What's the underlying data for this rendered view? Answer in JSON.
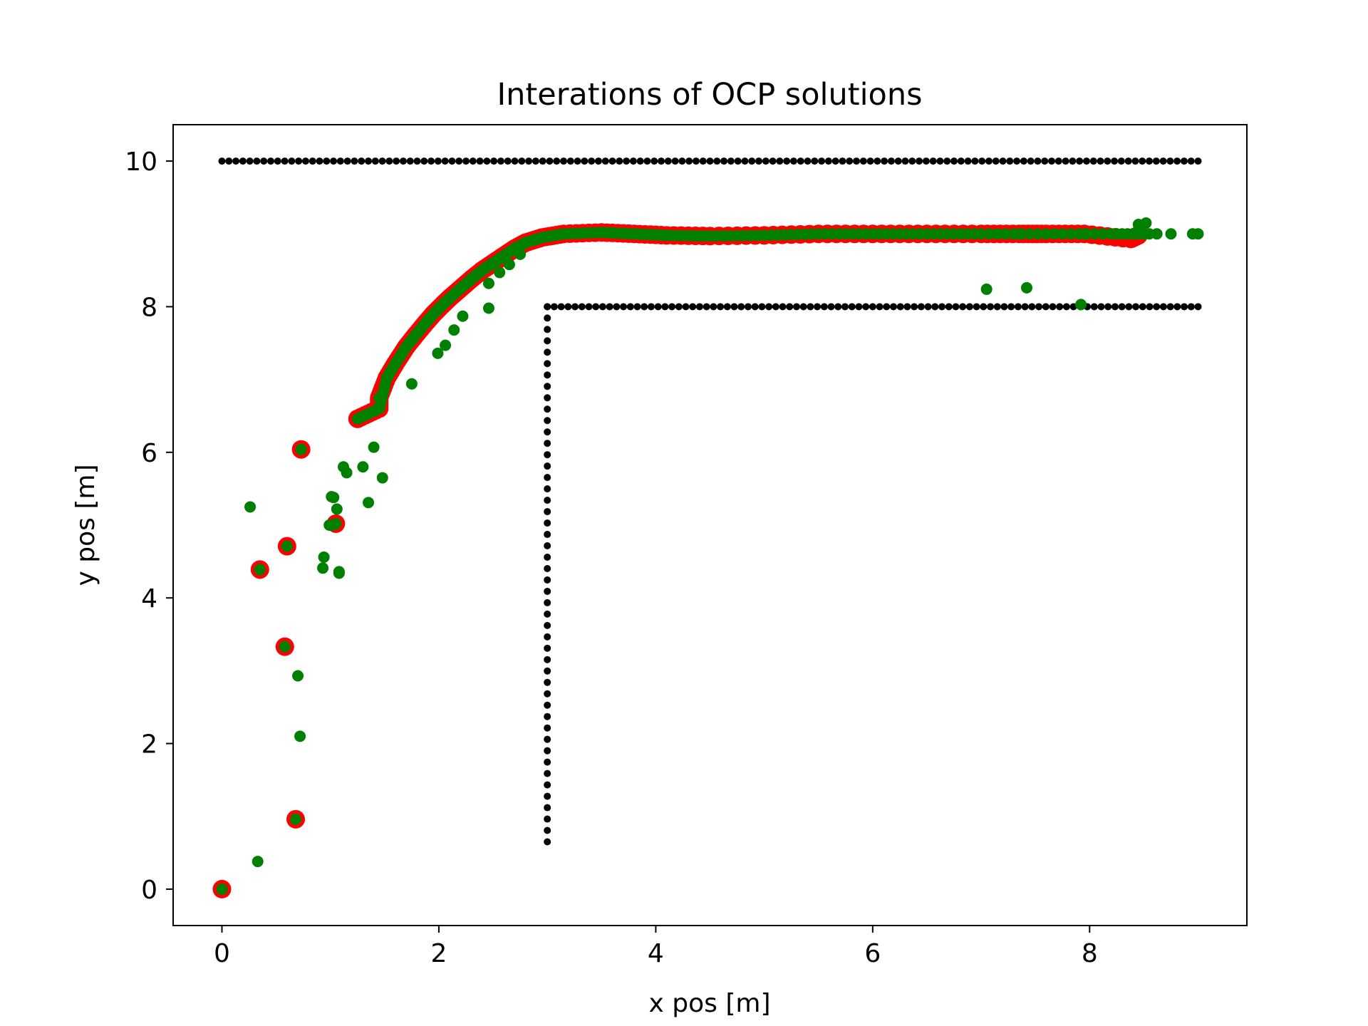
{
  "chart_data": {
    "type": "scatter",
    "title": "Interations of OCP solutions",
    "xlabel": "x pos [m]",
    "ylabel": "y pos [m]",
    "xlim": [
      -0.45,
      9.45
    ],
    "ylim": [
      -0.5,
      10.5
    ],
    "xticks": [
      0,
      2,
      4,
      6,
      8
    ],
    "yticks": [
      0,
      2,
      4,
      6,
      8,
      10
    ],
    "grid": false,
    "legend": "none",
    "series": [
      {
        "kind": "obstacle-top-wall",
        "color": "#000000",
        "x_range": [
          0,
          9
        ],
        "y": 10,
        "count": 141
      },
      {
        "kind": "obstacle-lower-wall",
        "color": "#000000",
        "x_range": [
          3,
          9
        ],
        "y": 8,
        "count": 95
      },
      {
        "kind": "obstacle-vertical-wall",
        "color": "#000000",
        "x": 3,
        "y_range": [
          0.65,
          8
        ],
        "count": 48
      },
      {
        "kind": "iterates-red",
        "color": "#ff0000",
        "points": [
          [
            0,
            0
          ],
          [
            0.68,
            0.96
          ],
          [
            0.58,
            3.33
          ],
          [
            0.35,
            4.39
          ],
          [
            0.6,
            4.71
          ],
          [
            1.05,
            5.02
          ],
          [
            0.73,
            6.04
          ],
          [
            1.25,
            6.46
          ],
          [
            1.45,
            6.6
          ],
          [
            1.45,
            6.75
          ],
          [
            1.52,
            7.02
          ],
          [
            1.6,
            7.22
          ],
          [
            1.7,
            7.45
          ],
          [
            1.78,
            7.6
          ],
          [
            1.88,
            7.78
          ],
          [
            1.95,
            7.9
          ],
          [
            2.03,
            8.02
          ],
          [
            2.1,
            8.12
          ],
          [
            2.2,
            8.25
          ],
          [
            2.3,
            8.38
          ],
          [
            2.4,
            8.5
          ],
          [
            2.5,
            8.6
          ],
          [
            2.6,
            8.7
          ],
          [
            2.7,
            8.8
          ],
          [
            2.8,
            8.88
          ],
          [
            2.95,
            8.95
          ],
          [
            3.15,
            9.0
          ],
          [
            3.5,
            9.02
          ],
          [
            3.8,
            9.0
          ],
          [
            4.1,
            8.98
          ],
          [
            4.5,
            8.97
          ],
          [
            5.0,
            8.98
          ],
          [
            5.5,
            9.0
          ],
          [
            6.0,
            9.0
          ],
          [
            6.5,
            9.0
          ],
          [
            7.0,
            9.0
          ],
          [
            7.35,
            9.0
          ],
          [
            7.6,
            9.0
          ],
          [
            7.95,
            9.0
          ],
          [
            8.38,
            8.93
          ],
          [
            8.45,
            8.98
          ]
        ]
      },
      {
        "kind": "iterates-green",
        "color": "#008000",
        "points": [
          [
            0,
            0
          ],
          [
            0.33,
            0.38
          ],
          [
            0.72,
            2.1
          ],
          [
            0.7,
            2.93
          ],
          [
            0.58,
            3.33
          ],
          [
            0.35,
            4.39
          ],
          [
            0.6,
            4.71
          ],
          [
            0.68,
            0.96
          ],
          [
            0.26,
            5.25
          ],
          [
            0.93,
            4.41
          ],
          [
            0.94,
            4.56
          ],
          [
            1.08,
            4.34
          ],
          [
            1.08,
            4.36
          ],
          [
            0.99,
            5.0
          ],
          [
            1.02,
            5.0
          ],
          [
            1.06,
            5.22
          ],
          [
            1.01,
            5.39
          ],
          [
            1.03,
            5.38
          ],
          [
            1.12,
            5.8
          ],
          [
            1.15,
            5.72
          ],
          [
            1.3,
            5.8
          ],
          [
            1.35,
            5.31
          ],
          [
            1.4,
            6.07
          ],
          [
            1.48,
            5.65
          ],
          [
            1.75,
            6.94
          ],
          [
            1.99,
            7.36
          ],
          [
            2.06,
            7.47
          ],
          [
            2.14,
            7.68
          ],
          [
            2.22,
            7.87
          ],
          [
            2.46,
            7.98
          ],
          [
            2.46,
            8.32
          ],
          [
            2.56,
            8.47
          ],
          [
            2.65,
            8.58
          ],
          [
            2.75,
            8.72
          ],
          [
            0.73,
            6.04
          ],
          [
            1.05,
            5.02
          ],
          [
            1.25,
            6.46
          ],
          [
            1.45,
            6.6
          ],
          [
            1.45,
            6.75
          ],
          [
            1.52,
            7.02
          ],
          [
            1.6,
            7.22
          ],
          [
            1.7,
            7.45
          ],
          [
            1.78,
            7.6
          ],
          [
            1.88,
            7.78
          ],
          [
            1.95,
            7.9
          ],
          [
            2.03,
            8.02
          ],
          [
            2.1,
            8.12
          ],
          [
            2.2,
            8.25
          ],
          [
            2.3,
            8.38
          ],
          [
            2.4,
            8.5
          ],
          [
            2.5,
            8.6
          ],
          [
            2.6,
            8.7
          ],
          [
            2.7,
            8.8
          ],
          [
            2.8,
            8.88
          ],
          [
            2.95,
            8.95
          ],
          [
            3.15,
            9.0
          ],
          [
            3.5,
            9.02
          ],
          [
            3.8,
            9.0
          ],
          [
            4.1,
            8.98
          ],
          [
            4.5,
            8.97
          ],
          [
            5.0,
            8.98
          ],
          [
            5.5,
            9.0
          ],
          [
            6.0,
            9.0
          ],
          [
            6.5,
            9.0
          ],
          [
            7.0,
            9.0
          ],
          [
            7.35,
            9.0
          ],
          [
            7.6,
            9.0
          ],
          [
            7.95,
            9.0
          ],
          [
            8.2,
            9.0
          ],
          [
            8.4,
            9.0
          ],
          [
            8.45,
            9.13
          ],
          [
            8.52,
            9.15
          ],
          [
            8.62,
            9.0
          ],
          [
            8.75,
            9.0
          ],
          [
            8.95,
            9.0
          ],
          [
            9.0,
            9.0
          ],
          [
            7.05,
            8.24
          ],
          [
            7.42,
            8.26
          ],
          [
            7.92,
            8.03
          ]
        ]
      }
    ]
  }
}
